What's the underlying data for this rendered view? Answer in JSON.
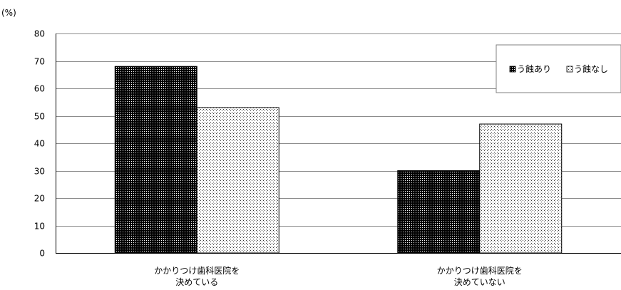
{
  "chart_data": {
    "type": "bar",
    "title": "",
    "unit_label": "(%)",
    "ylim": [
      0,
      80
    ],
    "yticks": [
      0,
      10,
      20,
      30,
      40,
      50,
      60,
      70,
      80
    ],
    "grid": true,
    "legend_position": "top-right",
    "categories": [
      [
        "かかりつけ歯科医院を",
        "決めている"
      ],
      [
        "かかりつけ歯科医院を",
        "決めていない"
      ]
    ],
    "series": [
      {
        "name": "う蝕あり",
        "values": [
          68,
          30
        ],
        "color": "#000000",
        "pattern": "dense-dots-on-black"
      },
      {
        "name": "う蝕なし",
        "values": [
          53,
          47
        ],
        "color": "#ffffff",
        "pattern": "sparse-dots-on-white"
      }
    ]
  }
}
